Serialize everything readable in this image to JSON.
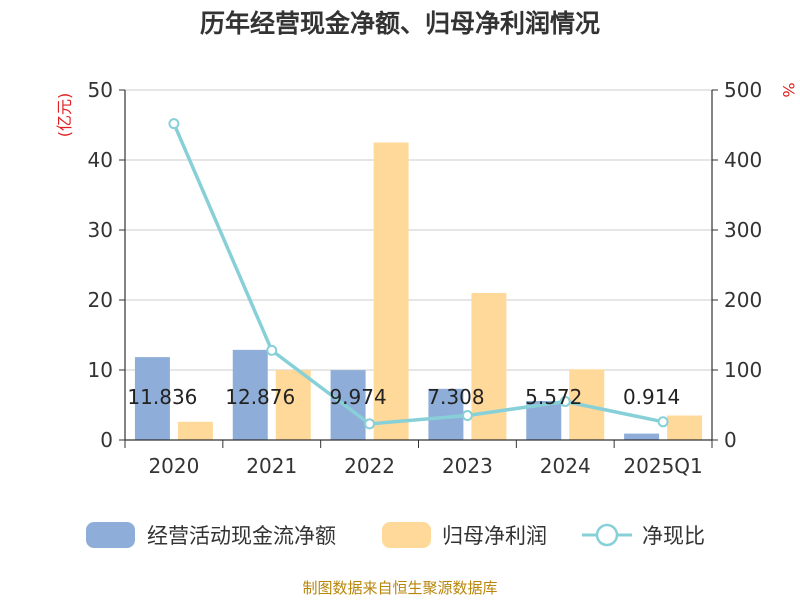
{
  "chart_data": {
    "type": "bar",
    "title": "历年经营现金净额、归母净利润情况",
    "categories": [
      "2020",
      "2021",
      "2022",
      "2023",
      "2024",
      "2025Q1"
    ],
    "left_axis": {
      "unit": "(亿元)",
      "ylim": [
        0,
        50
      ],
      "ticks": [
        "0",
        "10",
        "20",
        "30",
        "40",
        "50"
      ]
    },
    "right_axis": {
      "unit": "%",
      "ylim": [
        0,
        500
      ],
      "ticks": [
        "0",
        "100",
        "200",
        "300",
        "400",
        "500"
      ]
    },
    "series": [
      {
        "name": "经营活动现金流净额",
        "kind": "bar",
        "axis": "left",
        "color": "#8eadd9",
        "values": [
          11.836,
          12.876,
          9.974,
          7.308,
          5.572,
          0.914
        ],
        "labels": [
          "11.836",
          "12.876",
          "9.974",
          "7.308",
          "5.572",
          "0.914"
        ]
      },
      {
        "name": "归母净利润",
        "kind": "bar",
        "axis": "left",
        "color": "#ffd99a",
        "values": [
          2.6,
          10.0,
          42.5,
          21.0,
          10.1,
          3.5
        ]
      },
      {
        "name": "净现比",
        "kind": "line",
        "axis": "right",
        "color": "#88d0d8",
        "values": [
          452,
          128,
          23,
          35,
          55,
          26
        ]
      }
    ],
    "grid": true,
    "legend_position": "bottom",
    "source": "制图数据来自恒生聚源数据库"
  }
}
